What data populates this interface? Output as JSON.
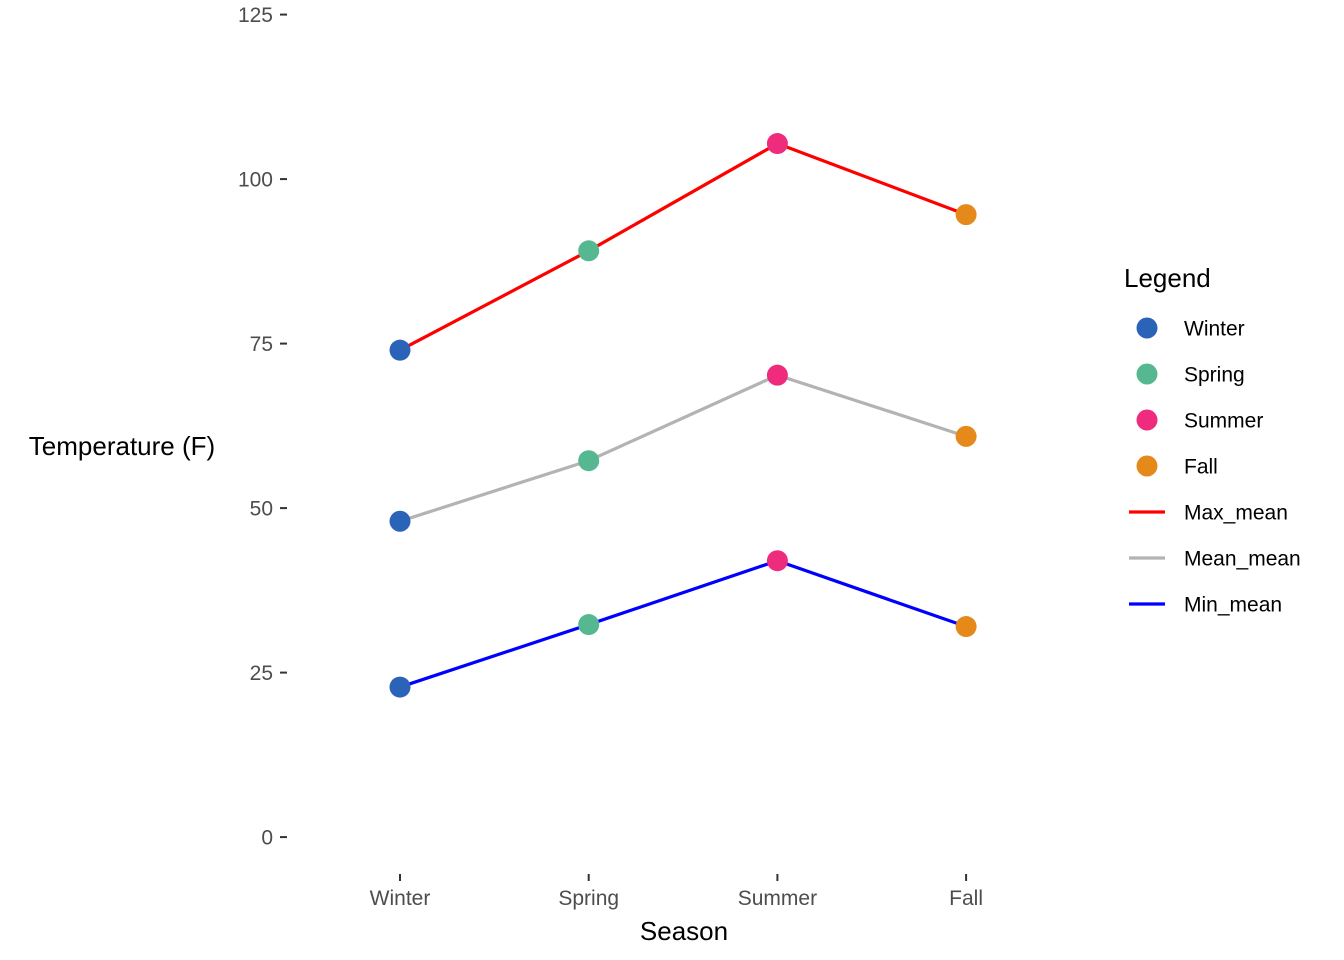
{
  "chart_data": {
    "type": "line",
    "categories": [
      "Winter",
      "Spring",
      "Summer",
      "Fall"
    ],
    "xlabel": "Season",
    "ylabel": "Temperature (F)",
    "ylim": [
      -5,
      126
    ],
    "yticks": [
      0,
      25,
      50,
      75,
      100,
      125
    ],
    "grid": false,
    "legend_position": "right",
    "legend_title": "Legend",
    "point_colors": {
      "Winter": "#2a63b8",
      "Spring": "#56b890",
      "Summer": "#ef2b7d",
      "Fall": "#e5891b"
    },
    "series": [
      {
        "name": "Max_mean",
        "color": "#ff0000",
        "values": [
          74.0,
          89.1,
          105.4,
          94.6
        ]
      },
      {
        "name": "Mean_mean",
        "color": "#b3b3b3",
        "values": [
          48.0,
          57.2,
          70.2,
          60.9
        ]
      },
      {
        "name": "Min_mean",
        "color": "#0000ff",
        "values": [
          22.8,
          32.3,
          42.0,
          32.0
        ]
      }
    ],
    "legend": [
      {
        "label": "Winter",
        "kind": "point",
        "color": "#2a63b8"
      },
      {
        "label": "Spring",
        "kind": "point",
        "color": "#56b890"
      },
      {
        "label": "Summer",
        "kind": "point",
        "color": "#ef2b7d"
      },
      {
        "label": "Fall",
        "kind": "point",
        "color": "#e5891b"
      },
      {
        "label": "Max_mean",
        "kind": "line",
        "color": "#ff0000"
      },
      {
        "label": "Mean_mean",
        "kind": "line",
        "color": "#b3b3b3"
      },
      {
        "label": "Min_mean",
        "kind": "line",
        "color": "#0000ff"
      }
    ]
  }
}
